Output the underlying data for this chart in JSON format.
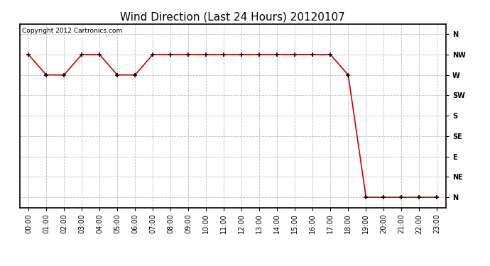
{
  "title": "Wind Direction (Last 24 Hours) 20120107",
  "copyright_text": "Copyright 2012 Cartronics.com",
  "line_color": "#cc0000",
  "marker": "+",
  "marker_color": "#000000",
  "marker_size": 5,
  "background_color": "#ffffff",
  "grid_color": "#bbbbbb",
  "x_labels": [
    "00:00",
    "01:00",
    "02:00",
    "03:00",
    "04:00",
    "05:00",
    "06:00",
    "07:00",
    "08:00",
    "09:00",
    "10:00",
    "11:00",
    "12:00",
    "13:00",
    "14:00",
    "15:00",
    "16:00",
    "17:00",
    "18:00",
    "19:00",
    "20:00",
    "21:00",
    "22:00",
    "23:00"
  ],
  "y_tick_positions": [
    0,
    1,
    2,
    3,
    4,
    5,
    6,
    7,
    8
  ],
  "y_tick_labels": [
    "N",
    "NE",
    "E",
    "SE",
    "S",
    "SW",
    "W",
    "NW",
    "N"
  ],
  "x_pts": [
    0,
    1,
    2,
    3,
    4,
    5,
    6,
    7,
    8,
    9,
    10,
    11,
    12,
    13,
    14,
    15,
    16,
    17,
    18,
    19,
    20,
    21,
    22,
    23
  ],
  "y_pts": [
    7,
    6,
    6,
    7,
    7,
    6,
    6,
    7,
    7,
    7,
    7,
    7,
    7,
    7,
    7,
    7,
    7,
    7,
    6,
    0,
    0,
    0,
    0,
    0
  ],
  "title_fontsize": 11,
  "tick_fontsize": 7,
  "copyright_fontsize": 6.5
}
